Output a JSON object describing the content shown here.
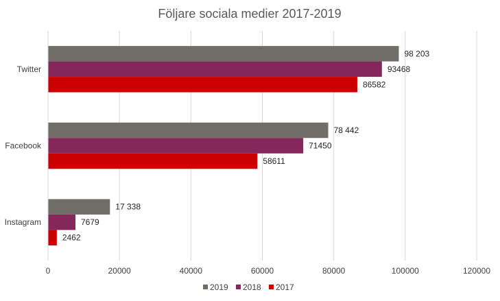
{
  "chart_data": {
    "type": "bar",
    "orientation": "horizontal",
    "title": "Följare sociala medier 2017-2019",
    "categories": [
      "Twitter",
      "Facebook",
      "Instagram"
    ],
    "series": [
      {
        "name": "2019",
        "color": "#706e66",
        "values": [
          98203,
          78442,
          17338
        ],
        "labels": [
          "98 203",
          "78 442",
          "17 338"
        ]
      },
      {
        "name": "2018",
        "color": "#85275a",
        "values": [
          93468,
          71450,
          7679
        ],
        "labels": [
          "93468",
          "71450",
          "7679"
        ]
      },
      {
        "name": "2017",
        "color": "#cc0000",
        "values": [
          86582,
          58611,
          2462
        ],
        "labels": [
          "86582",
          "58611",
          "2462"
        ]
      }
    ],
    "xlim": [
      0,
      120000
    ],
    "xticks": [
      0,
      20000,
      40000,
      60000,
      80000,
      100000,
      120000
    ],
    "xtick_labels": [
      "0",
      "20000",
      "40000",
      "60000",
      "80000",
      "100000",
      "120000"
    ],
    "grid": true,
    "legend_position": "bottom"
  }
}
